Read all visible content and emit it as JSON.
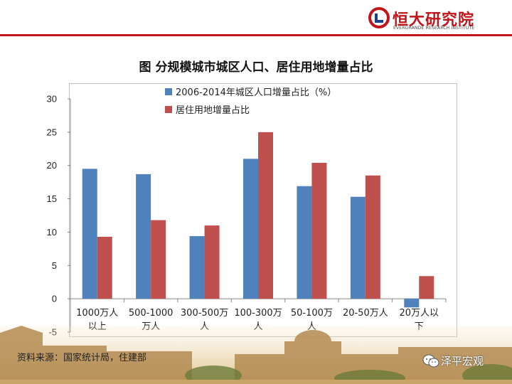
{
  "header": {
    "logo_cn": "恒大研究院",
    "logo_en": "EVERGRANDE RESEARCH INSTITUTE",
    "accent_color": "#c0161b"
  },
  "chart_data": {
    "type": "bar",
    "title": "图  分规模城市城区人口、居住用地增量占比",
    "categories": [
      [
        "1000万人",
        "以上"
      ],
      [
        "500-1000",
        "万人"
      ],
      [
        "300-500万",
        "人"
      ],
      [
        "100-300万",
        "人"
      ],
      [
        "50-100万",
        "人"
      ],
      [
        "20-50万人"
      ],
      [
        "20万人以",
        "下"
      ]
    ],
    "series": [
      {
        "name": "2006-2014年城区人口增量占比（%）",
        "color": "#4f81bd",
        "values": [
          19.5,
          18.7,
          9.4,
          21.0,
          16.9,
          15.3,
          -1.3
        ]
      },
      {
        "name": "居住用地增量占比",
        "color": "#c0504d",
        "values": [
          9.3,
          11.8,
          11.0,
          25.0,
          20.4,
          18.5,
          3.4
        ]
      }
    ],
    "ylim": [
      -5,
      30
    ],
    "yticks": [
      -5,
      0,
      5,
      10,
      15,
      20,
      25,
      30
    ],
    "legend": "top-left",
    "grid": false
  },
  "footer": {
    "source": "资料来源：国家统计局，住建部",
    "wechat": "泽平宏观",
    "wechat_icon": "wechat-icon"
  }
}
